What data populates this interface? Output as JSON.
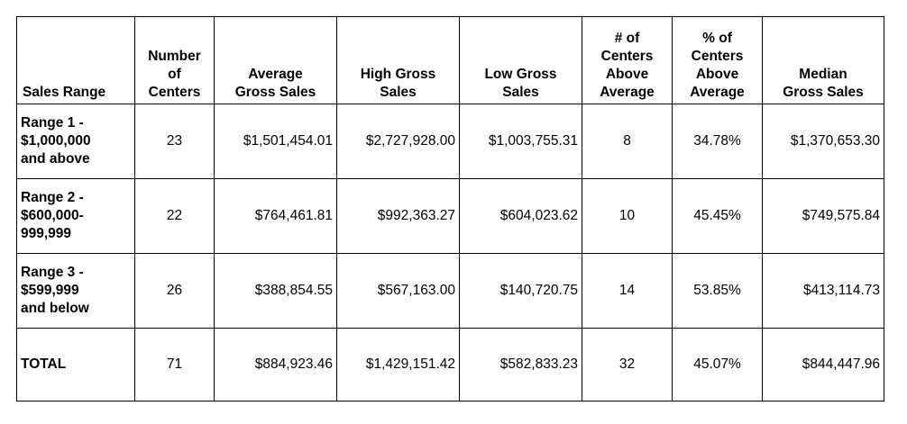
{
  "headers": {
    "sales_range": "Sales Range",
    "number_of_centers": [
      "Number",
      "of",
      "Centers"
    ],
    "average_gross_sales": [
      "Average",
      "Gross Sales"
    ],
    "high_gross_sales": [
      "High Gross",
      "Sales"
    ],
    "low_gross_sales": [
      "Low Gross",
      "Sales"
    ],
    "num_above_average": [
      "# of",
      "Centers",
      "Above",
      "Average"
    ],
    "pct_above_average": [
      "% of",
      "Centers",
      "Above",
      "Average"
    ],
    "median_gross_sales": [
      "Median",
      "Gross Sales"
    ]
  },
  "rows": [
    {
      "range": [
        "Range 1  -",
        "$1,000,000",
        "and above"
      ],
      "number": "23",
      "average": "$1,501,454.01",
      "high": "$2,727,928.00",
      "low": "$1,003,755.31",
      "above_count": "8",
      "above_pct": "34.78%",
      "median": "$1,370,653.30"
    },
    {
      "range": [
        "Range 2  -",
        "$600,000-",
        "999,999"
      ],
      "number": "22",
      "average": "$764,461.81",
      "high": "$992,363.27",
      "low": "$604,023.62",
      "above_count": "10",
      "above_pct": "45.45%",
      "median": "$749,575.84"
    },
    {
      "range": [
        "Range 3  -",
        "$599,999",
        "and below"
      ],
      "number": "26",
      "average": "$388,854.55",
      "high": "$567,163.00",
      "low": "$140,720.75",
      "above_count": "14",
      "above_pct": "53.85%",
      "median": "$413,114.73"
    },
    {
      "range": [
        "TOTAL"
      ],
      "number": "71",
      "average": "$884,923.46",
      "high": "$1,429,151.42",
      "low": "$582,833.23",
      "above_count": "32",
      "above_pct": "45.07%",
      "median": "$844,447.96"
    }
  ]
}
